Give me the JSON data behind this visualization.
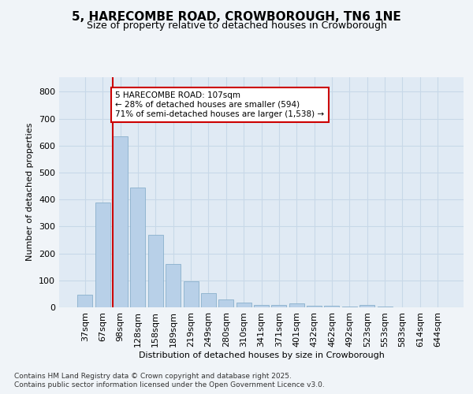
{
  "title": "5, HARECOMBE ROAD, CROWBOROUGH, TN6 1NE",
  "subtitle": "Size of property relative to detached houses in Crowborough",
  "xlabel": "Distribution of detached houses by size in Crowborough",
  "ylabel": "Number of detached properties",
  "categories": [
    "37sqm",
    "67sqm",
    "98sqm",
    "128sqm",
    "158sqm",
    "189sqm",
    "219sqm",
    "249sqm",
    "280sqm",
    "310sqm",
    "341sqm",
    "371sqm",
    "401sqm",
    "432sqm",
    "462sqm",
    "492sqm",
    "523sqm",
    "553sqm",
    "583sqm",
    "614sqm",
    "644sqm"
  ],
  "values": [
    47,
    390,
    635,
    445,
    270,
    160,
    97,
    52,
    30,
    18,
    10,
    10,
    14,
    5,
    5,
    2,
    10,
    2,
    0,
    0,
    0
  ],
  "bar_color": "#b8d0e8",
  "bar_edge_color": "#8ab0cc",
  "vline_color": "#cc0000",
  "vline_x_idx": 2,
  "annotation_line1": "5 HARECOMBE ROAD: 107sqm",
  "annotation_line2": "← 28% of detached houses are smaller (594)",
  "annotation_line3": "71% of semi-detached houses are larger (1,538) →",
  "annotation_box_facecolor": "#ffffff",
  "annotation_box_edgecolor": "#cc0000",
  "ylim": [
    0,
    855
  ],
  "yticks": [
    0,
    100,
    200,
    300,
    400,
    500,
    600,
    700,
    800
  ],
  "footer_line1": "Contains HM Land Registry data © Crown copyright and database right 2025.",
  "footer_line2": "Contains public sector information licensed under the Open Government Licence v3.0.",
  "fig_bg_color": "#f0f4f8",
  "plot_bg_color": "#e0eaf4",
  "grid_color": "#c8d8e8"
}
